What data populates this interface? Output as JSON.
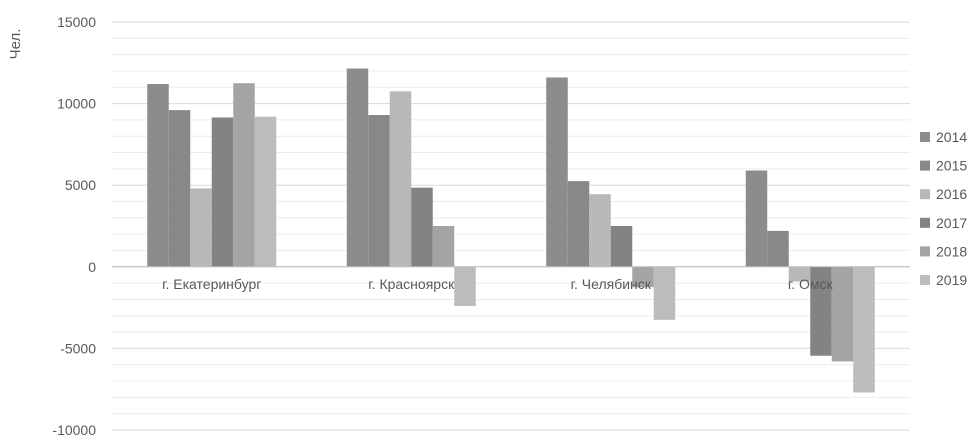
{
  "chart_data": {
    "type": "bar",
    "ylabel": "Чел.",
    "xlabel": "",
    "title": "",
    "ylim": [
      -10000,
      15000
    ],
    "y_ticks": [
      15000,
      10000,
      5000,
      0,
      -5000,
      -10000
    ],
    "grid": true,
    "legend_position": "right",
    "categories": [
      "г. Екатеринбург",
      "г. Красноярск",
      "г. Челябинск",
      "г. Омск"
    ],
    "series": [
      {
        "name": "2014",
        "color": "#8c8c8c",
        "values": [
          11200,
          12150,
          11600,
          5900
        ]
      },
      {
        "name": "2015",
        "color": "#888888",
        "values": [
          9600,
          9300,
          5250,
          2200
        ]
      },
      {
        "name": "2016",
        "color": "#b8b8b8",
        "values": [
          4800,
          10750,
          4450,
          -900
        ]
      },
      {
        "name": "2017",
        "color": "#838383",
        "values": [
          9150,
          4850,
          2500,
          -5450
        ]
      },
      {
        "name": "2018",
        "color": "#a4a4a4",
        "values": [
          11250,
          2500,
          -1250,
          -5800
        ]
      },
      {
        "name": "2019",
        "color": "#bcbcbc",
        "values": [
          9200,
          -2400,
          -3250,
          -7700
        ]
      }
    ]
  }
}
